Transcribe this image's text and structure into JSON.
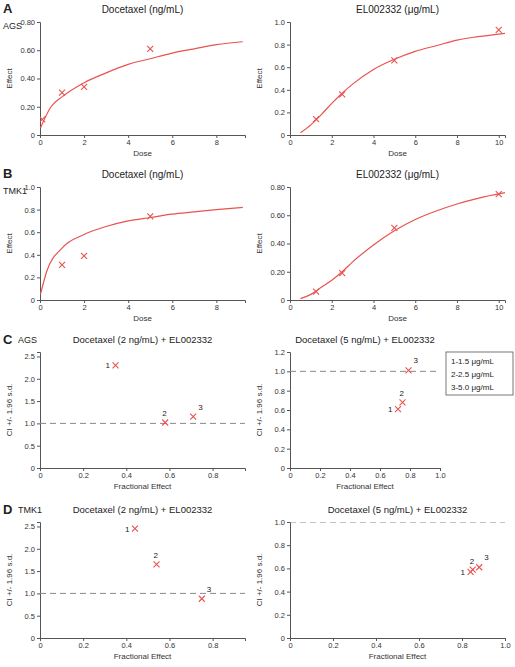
{
  "chart_data": [
    {
      "type": "line",
      "title": "Docetaxel (ng/mL)",
      "x_label": "Dose",
      "y_label": "Effect",
      "annotations": [
        "A",
        "AGS"
      ],
      "xlim": [
        0,
        9.3
      ],
      "xticks": [
        0,
        2,
        4,
        6,
        8
      ],
      "ylim": [
        0,
        0.8
      ],
      "yticks": [
        0,
        {
          "value": 0.2,
          "label": "0.20"
        },
        {
          "value": 0.4,
          "label": "0.40"
        },
        {
          "value": 0.6,
          "label": "0.60"
        },
        {
          "value": 0.8,
          "label": "0.80"
        }
      ],
      "series": [
        {
          "type": "line",
          "color": "#e8534f",
          "x": [
            0.02,
            0.5,
            1,
            2,
            3,
            4,
            5,
            6,
            7,
            8,
            9.2
          ],
          "values": [
            0.05,
            0.2,
            0.27,
            0.37,
            0.44,
            0.5,
            0.54,
            0.58,
            0.61,
            0.64,
            0.66
          ]
        },
        {
          "type": "scatter",
          "marker": "x",
          "color": "#e8534f",
          "x": [
            0.1,
            1,
            2,
            5
          ],
          "values": [
            0.11,
            0.3,
            0.34,
            0.61
          ]
        }
      ]
    },
    {
      "type": "line",
      "title": "EL002332 (μg/mL)",
      "x_label": "Dose",
      "y_label": "Effect",
      "xlim": [
        0,
        10.3
      ],
      "xticks": [
        0,
        2,
        4,
        6,
        8,
        10
      ],
      "ylim": [
        0,
        1.0
      ],
      "yticks": [
        0,
        0.2,
        0.4,
        0.6,
        0.8,
        {
          "value": 1.0,
          "label": "1.0"
        }
      ],
      "series": [
        {
          "type": "line",
          "color": "#e8534f",
          "x": [
            0.5,
            1,
            1.5,
            2,
            2.5,
            3,
            4,
            5,
            6,
            7,
            8,
            9,
            10.3
          ],
          "values": [
            0.02,
            0.09,
            0.18,
            0.28,
            0.37,
            0.45,
            0.58,
            0.67,
            0.74,
            0.79,
            0.84,
            0.87,
            0.9
          ]
        },
        {
          "type": "scatter",
          "marker": "x",
          "color": "#e8534f",
          "x": [
            1.25,
            2.5,
            5,
            10
          ],
          "values": [
            0.14,
            0.36,
            0.66,
            0.93
          ]
        }
      ]
    },
    {
      "type": "line",
      "title": "Docetaxel (ng/mL)",
      "x_label": "Dose",
      "y_label": "Effect",
      "annotations": [
        "B",
        "TMK1"
      ],
      "xlim": [
        0,
        9.3
      ],
      "xticks": [
        0,
        2,
        4,
        6,
        8
      ],
      "ylim": [
        0,
        1.0
      ],
      "yticks": [
        0,
        0.2,
        0.4,
        0.6,
        0.8,
        {
          "value": 1.0,
          "label": "1.0"
        }
      ],
      "series": [
        {
          "type": "line",
          "color": "#e8534f",
          "x": [
            0.02,
            0.3,
            1,
            2,
            3,
            4,
            5,
            6,
            7,
            8,
            9.2
          ],
          "values": [
            0.05,
            0.25,
            0.46,
            0.58,
            0.65,
            0.7,
            0.73,
            0.76,
            0.78,
            0.8,
            0.82
          ]
        },
        {
          "type": "scatter",
          "marker": "x",
          "color": "#e8534f",
          "x": [
            1,
            2,
            5
          ],
          "values": [
            0.31,
            0.39,
            0.74
          ]
        }
      ]
    },
    {
      "type": "line",
      "title": "EL002332 (μg/mL)",
      "x_label": "Dose",
      "y_label": "Effect",
      "xlim": [
        0,
        10.3
      ],
      "xticks": [
        0,
        2,
        4,
        6,
        8,
        10
      ],
      "ylim": [
        0,
        0.8
      ],
      "yticks": [
        0,
        {
          "value": 0.2,
          "label": "0.20"
        },
        {
          "value": 0.4,
          "label": "0.40"
        },
        {
          "value": 0.6,
          "label": "0.60"
        },
        {
          "value": 0.8,
          "label": "0.80"
        }
      ],
      "series": [
        {
          "type": "line",
          "color": "#e8534f",
          "x": [
            0.5,
            1,
            1.5,
            2,
            2.5,
            3,
            4,
            5,
            6,
            7,
            8,
            9,
            10.3
          ],
          "values": [
            0.01,
            0.04,
            0.09,
            0.14,
            0.2,
            0.27,
            0.39,
            0.49,
            0.57,
            0.63,
            0.68,
            0.72,
            0.76
          ]
        },
        {
          "type": "scatter",
          "marker": "x",
          "color": "#e8534f",
          "x": [
            1.25,
            2.5,
            5,
            10
          ],
          "values": [
            0.06,
            0.19,
            0.51,
            0.75
          ]
        }
      ]
    },
    {
      "type": "scatter",
      "title": "Docetaxel (2 ng/mL) + EL002332",
      "x_label": "Fractional Effect",
      "y_label": "CI +/- 1.96 s.d.",
      "annotations": [
        "C",
        "AGS"
      ],
      "xlim": [
        0,
        0.95
      ],
      "xticks": [
        0,
        0.2,
        0.4,
        0.6,
        0.8
      ],
      "ylim": [
        0,
        2.6
      ],
      "yticks": [
        0,
        0.5,
        {
          "value": 1.0,
          "label": "1.0"
        },
        1.5,
        {
          "value": 2.0,
          "label": "2.0"
        },
        2.5
      ],
      "reference_y": 1,
      "series": [
        {
          "type": "scatter",
          "marker": "x",
          "color": "#e8534f",
          "x": [
            0.35,
            0.58,
            0.71
          ],
          "values": [
            2.3,
            1.02,
            1.15
          ],
          "labels": [
            "1",
            "2",
            "3"
          ]
        }
      ]
    },
    {
      "type": "scatter",
      "title": "Docetaxel (5 ng/mL) + EL002332",
      "x_label": "Fractional Effect",
      "y_label": "CI +/- 1.96 s.d.",
      "annotations": [
        "1-1.5 μg/mL",
        "2-2.5 μg/mL",
        "3-5.0 μg/mL"
      ],
      "xlim": [
        0,
        1.0
      ],
      "xticks": [
        0,
        0.2,
        0.4,
        0.6,
        0.8,
        {
          "value": 1.0,
          "label": "1.0"
        }
      ],
      "ylim": [
        0,
        1.2
      ],
      "yticks": [
        0,
        0.2,
        0.4,
        0.6,
        0.8,
        {
          "value": 1.0,
          "label": "1.0"
        },
        1.2
      ],
      "reference_y": 1,
      "series": [
        {
          "type": "scatter",
          "marker": "x",
          "color": "#e8534f",
          "x": [
            0.72,
            0.75,
            0.79
          ],
          "values": [
            0.61,
            0.68,
            1.01
          ],
          "labels": [
            "1",
            "2",
            "3"
          ]
        }
      ]
    },
    {
      "type": "scatter",
      "title": "Docetaxel (2 ng/mL) + EL002332",
      "x_label": "Fractional Effect",
      "y_label": "CI +/- 1.96 s.d.",
      "annotations": [
        "D",
        "TMK1"
      ],
      "xlim": [
        0,
        0.95
      ],
      "xticks": [
        0,
        0.2,
        0.4,
        0.6,
        0.8
      ],
      "ylim": [
        0,
        2.6
      ],
      "yticks": [
        0,
        0.5,
        {
          "value": 1.0,
          "label": "1.0"
        },
        1.5,
        {
          "value": 2.0,
          "label": "2.0"
        },
        2.5
      ],
      "reference_y": 1,
      "series": [
        {
          "type": "scatter",
          "marker": "x",
          "color": "#e8534f",
          "x": [
            0.44,
            0.54,
            0.75
          ],
          "values": [
            2.45,
            1.65,
            0.88
          ],
          "labels": [
            "1",
            "2",
            "3"
          ]
        }
      ]
    },
    {
      "type": "scatter",
      "title": "Docetaxel (5 ng/mL) + EL002332",
      "x_label": "Fractional Effect",
      "y_label": "CI +/- 1.96 s.d.",
      "xlim": [
        0,
        1.0
      ],
      "xticks": [
        0,
        0.2,
        0.4,
        0.6,
        0.8,
        {
          "value": 1.0,
          "label": "1.0"
        }
      ],
      "ylim": [
        0,
        1.0
      ],
      "yticks": [
        0,
        0.2,
        0.4,
        0.6,
        0.8,
        {
          "value": 1.0,
          "label": "1.0"
        }
      ],
      "reference_y": 1,
      "series": [
        {
          "type": "scatter",
          "marker": "x",
          "color": "#e8534f",
          "x": [
            0.84,
            0.85,
            0.88
          ],
          "values": [
            0.57,
            0.59,
            0.61
          ],
          "labels": [
            "1",
            "2",
            "3"
          ]
        }
      ]
    }
  ]
}
